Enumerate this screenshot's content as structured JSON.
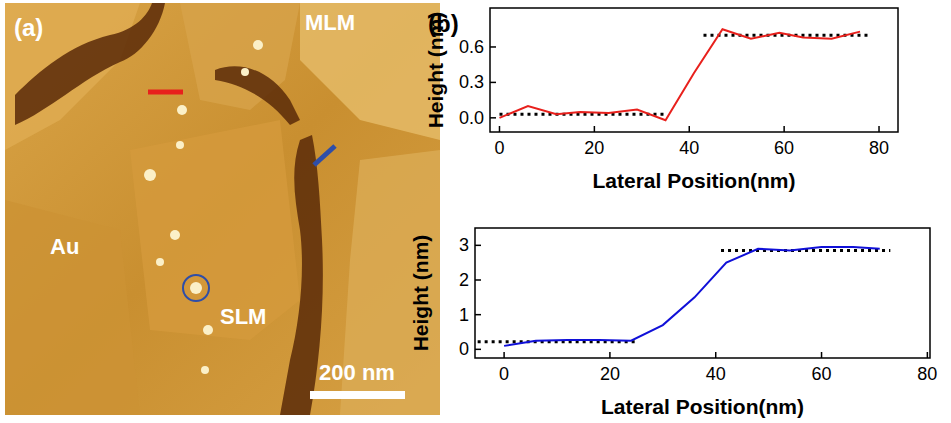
{
  "panel_a": {
    "panel_label": "(a)",
    "labels": [
      "MLM",
      "Au",
      "SLM"
    ],
    "scale_bar": "200 nm"
  },
  "panel_b_label": "(b)",
  "chart_data": [
    {
      "type": "line",
      "color": "#e8201c",
      "x_label": "Lateral Position(nm)",
      "y_label": "Height (nm)",
      "x": [
        0,
        6,
        12,
        17,
        23,
        29,
        35,
        41,
        47,
        53,
        59,
        64,
        70,
        76
      ],
      "values": [
        0,
        0.1,
        0.03,
        0.05,
        0.04,
        0.07,
        -0.02,
        0.38,
        0.75,
        0.67,
        0.72,
        0.68,
        0.67,
        0.73
      ],
      "reference_lines": [
        {
          "x": [
            0,
            35
          ],
          "y": 0.03
        },
        {
          "x": [
            43,
            78
          ],
          "y": 0.7
        }
      ],
      "xlim": [
        -2,
        84
      ],
      "ylim": [
        -0.12,
        0.93
      ],
      "xticks": [
        0,
        20,
        40,
        60,
        80
      ],
      "yticks": [
        {
          "value": 0,
          "label": "0.0"
        },
        {
          "value": 0.3,
          "label": "0.3"
        },
        {
          "value": 0.6,
          "label": "0.6"
        }
      ]
    },
    {
      "type": "line",
      "color": "#1010d8",
      "x_label": "Lateral Position(nm)",
      "y_label": "Height (nm)",
      "x": [
        0,
        6,
        12,
        18,
        24,
        30,
        36,
        42,
        48,
        54,
        60,
        66,
        71
      ],
      "values": [
        0.1,
        0.25,
        0.27,
        0.27,
        0.25,
        0.7,
        1.5,
        2.5,
        2.9,
        2.85,
        2.95,
        2.95,
        2.9
      ],
      "reference_lines": [
        {
          "x": [
            -5,
            25
          ],
          "y": 0.22
        },
        {
          "x": [
            41,
            73
          ],
          "y": 2.85
        }
      ],
      "xlim": [
        -5.5,
        80.5
      ],
      "ylim": [
        -0.25,
        3.5
      ],
      "xticks": [
        0,
        20,
        40,
        60,
        80
      ],
      "yticks": [
        0,
        1,
        2,
        3
      ]
    }
  ]
}
